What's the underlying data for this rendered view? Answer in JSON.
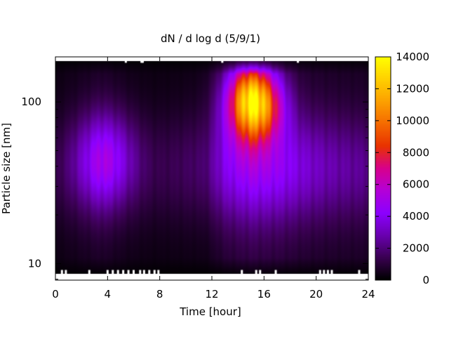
{
  "chart_data": {
    "type": "heatmap",
    "title": "dN / d log d (5/9/1)",
    "xlabel": "Time [hour]",
    "ylabel": "Particle size [nm]",
    "x_range": [
      0,
      24
    ],
    "x_ticks": [
      0,
      4,
      8,
      12,
      16,
      20,
      24
    ],
    "x_tick_labels": [
      "0",
      "4",
      "8",
      "12",
      "16",
      "20",
      "24"
    ],
    "y_scale": "log",
    "y_range": [
      7.9,
      190
    ],
    "y_ticks": [
      10,
      100
    ],
    "y_tick_labels": [
      "10",
      "100"
    ],
    "colorbar": {
      "range": [
        0,
        14000
      ],
      "ticks": [
        0,
        2000,
        4000,
        6000,
        8000,
        10000,
        12000,
        14000
      ],
      "tick_labels": [
        "0",
        "2000",
        "4000",
        "6000",
        "8000",
        "10000",
        "12000",
        "14000"
      ],
      "palette": [
        "#000000",
        "#3a0052",
        "#6a00b0",
        "#8c00ff",
        "#b400d8",
        "#d8008c",
        "#e83200",
        "#f56a00",
        "#fca000",
        "#ffd000",
        "#ffff00"
      ]
    },
    "grid": false,
    "legend": "none",
    "data_extent": {
      "size_nm": [
        8.6,
        180
      ],
      "time_hour": [
        0,
        24
      ]
    },
    "features": [
      {
        "time_hour": 3.8,
        "size_nm": 45,
        "time_width_hour": 1.6,
        "size_width_log10": 0.2,
        "peak": 3400
      },
      {
        "time_hour": 15.1,
        "size_nm": 100,
        "time_width_hour": 1.35,
        "size_width_log10": 0.17,
        "peak": 11300
      },
      {
        "time_hour": 14.6,
        "size_nm": 110,
        "time_width_hour": 0.8,
        "size_width_log10": 0.12,
        "peak": 1800
      },
      {
        "time_hour": 15.8,
        "size_nm": 100,
        "time_width_hour": 0.7,
        "size_width_log10": 0.12,
        "peak": 1600
      },
      {
        "time_hour": 16.8,
        "size_nm": 95,
        "time_width_hour": 0.6,
        "size_width_log10": 0.13,
        "peak": 1200
      },
      {
        "time_hour": 17.8,
        "size_nm": 95,
        "time_width_hour": 0.6,
        "size_width_log10": 0.13,
        "peak": 500
      },
      {
        "time_hour": 16,
        "size_nm": 45,
        "time_width_hour": 4,
        "size_width_log10": 0.25,
        "peak": 1200
      }
    ],
    "background_by_time": [
      {
        "time_hour": 0,
        "level": 1200
      },
      {
        "time_hour": 1.5,
        "level": 1700
      },
      {
        "time_hour": 3.5,
        "level": 2500
      },
      {
        "time_hour": 5.5,
        "level": 1600
      },
      {
        "time_hour": 7.5,
        "level": 1200
      },
      {
        "time_hour": 9.5,
        "level": 1300
      },
      {
        "time_hour": 11.5,
        "level": 1400
      },
      {
        "time_hour": 13,
        "level": 3200
      },
      {
        "time_hour": 15,
        "level": 4200
      },
      {
        "time_hour": 17,
        "level": 3800
      },
      {
        "time_hour": 19,
        "level": 3000
      },
      {
        "time_hour": 21,
        "level": 2600
      },
      {
        "time_hour": 24,
        "level": 2400
      }
    ],
    "missing_data_hours": {
      "top_edge": [
        5.4,
        6.6,
        6.7,
        12.8,
        18.6
      ],
      "bottom_edge": [
        0.5,
        0.8,
        2.6,
        4.0,
        4.4,
        4.8,
        5.2,
        5.6,
        6.0,
        6.5,
        6.8,
        7.2,
        7.6,
        7.9,
        14.3,
        15.4,
        15.7,
        16.9,
        20.3,
        20.6,
        20.9,
        21.2,
        23.3
      ]
    }
  }
}
